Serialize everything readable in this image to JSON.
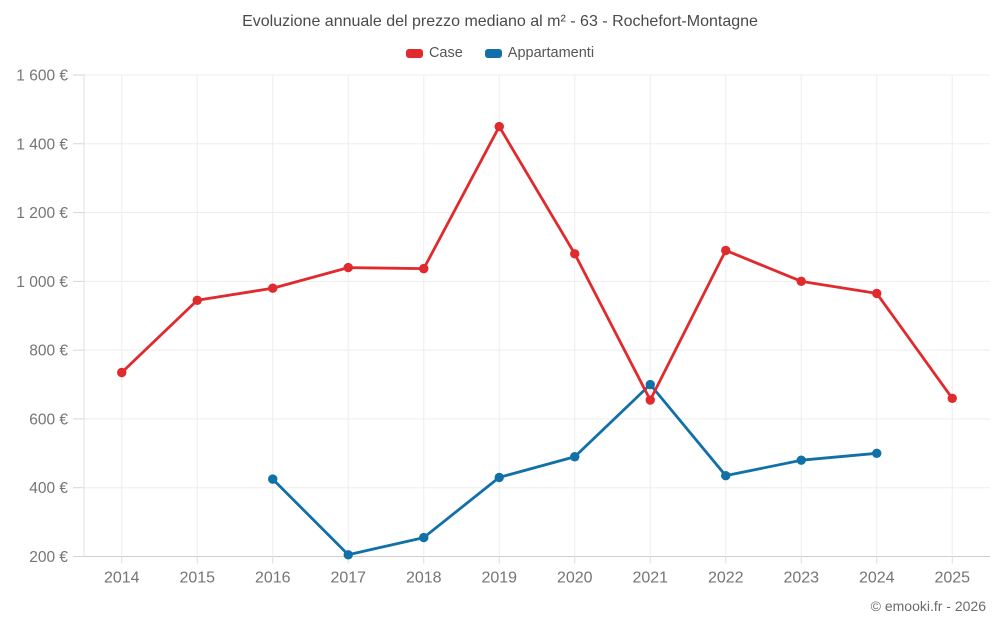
{
  "footer": {
    "copyright": "© emooki.fr - 2026"
  },
  "chart_data": {
    "type": "line",
    "title": "Evoluzione annuale del prezzo mediano al m² - 63 - Rochefort-Montagne",
    "categories": [
      "2014",
      "2015",
      "2016",
      "2017",
      "2018",
      "2019",
      "2020",
      "2021",
      "2022",
      "2023",
      "2024",
      "2025"
    ],
    "series": [
      {
        "name": "Case",
        "color": "#e02a2e",
        "values": [
          735,
          945,
          980,
          1040,
          1037,
          1450,
          1080,
          655,
          1090,
          1000,
          965,
          660
        ]
      },
      {
        "name": "Appartamenti",
        "color": "#1170a8",
        "values": [
          null,
          null,
          425,
          205,
          255,
          430,
          490,
          700,
          435,
          480,
          500,
          null
        ]
      }
    ],
    "y_axis": {
      "min": 200,
      "max": 1600,
      "step": 200,
      "unit": "€",
      "tick_labels": [
        "200 €",
        "400 €",
        "600 €",
        "800 €",
        "1 000 €",
        "1 200 €",
        "1 400 €",
        "1 600 €"
      ]
    },
    "x_axis_label": "",
    "y_axis_label": "",
    "legend_position": "top",
    "grid": true
  }
}
